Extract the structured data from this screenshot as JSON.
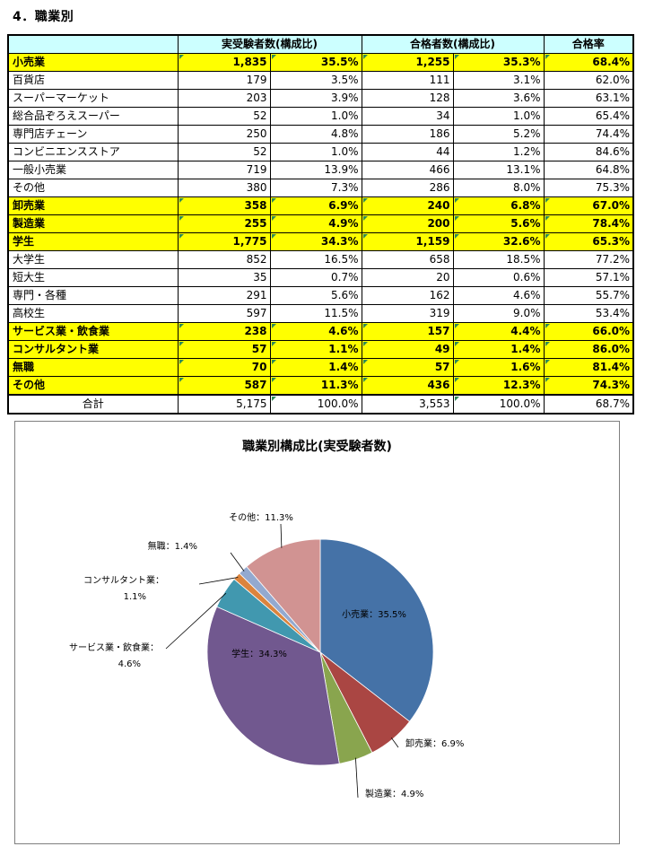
{
  "section_title": "4．職業別",
  "table": {
    "headers": [
      "",
      "実受験者数(構成比)",
      "合格者数(構成比)",
      "合格率"
    ],
    "rows": [
      {
        "type": "cat",
        "label": "小売業",
        "examinees": "1,835",
        "examinees_ratio": "35.5%",
        "passed": "1,255",
        "passed_ratio": "35.3%",
        "pass_rate": "68.4%"
      },
      {
        "type": "sub",
        "label": "百貨店",
        "examinees": "179",
        "examinees_ratio": "3.5%",
        "passed": "111",
        "passed_ratio": "3.1%",
        "pass_rate": "62.0%"
      },
      {
        "type": "sub",
        "label": "スーパーマーケット",
        "examinees": "203",
        "examinees_ratio": "3.9%",
        "passed": "128",
        "passed_ratio": "3.6%",
        "pass_rate": "63.1%"
      },
      {
        "type": "sub",
        "label": "総合品ぞろえスーパー",
        "examinees": "52",
        "examinees_ratio": "1.0%",
        "passed": "34",
        "passed_ratio": "1.0%",
        "pass_rate": "65.4%"
      },
      {
        "type": "sub",
        "label": "専門店チェーン",
        "examinees": "250",
        "examinees_ratio": "4.8%",
        "passed": "186",
        "passed_ratio": "5.2%",
        "pass_rate": "74.4%"
      },
      {
        "type": "sub",
        "label": "コンビニエンスストア",
        "examinees": "52",
        "examinees_ratio": "1.0%",
        "passed": "44",
        "passed_ratio": "1.2%",
        "pass_rate": "84.6%"
      },
      {
        "type": "sub",
        "label": "一般小売業",
        "examinees": "719",
        "examinees_ratio": "13.9%",
        "passed": "466",
        "passed_ratio": "13.1%",
        "pass_rate": "64.8%"
      },
      {
        "type": "sub",
        "label": "その他",
        "examinees": "380",
        "examinees_ratio": "7.3%",
        "passed": "286",
        "passed_ratio": "8.0%",
        "pass_rate": "75.3%"
      },
      {
        "type": "cat",
        "label": "卸売業",
        "examinees": "358",
        "examinees_ratio": "6.9%",
        "passed": "240",
        "passed_ratio": "6.8%",
        "pass_rate": "67.0%"
      },
      {
        "type": "cat",
        "label": "製造業",
        "examinees": "255",
        "examinees_ratio": "4.9%",
        "passed": "200",
        "passed_ratio": "5.6%",
        "pass_rate": "78.4%"
      },
      {
        "type": "cat",
        "label": "学生",
        "examinees": "1,775",
        "examinees_ratio": "34.3%",
        "passed": "1,159",
        "passed_ratio": "32.6%",
        "pass_rate": "65.3%"
      },
      {
        "type": "sub",
        "label": "大学生",
        "examinees": "852",
        "examinees_ratio": "16.5%",
        "passed": "658",
        "passed_ratio": "18.5%",
        "pass_rate": "77.2%"
      },
      {
        "type": "sub",
        "label": "短大生",
        "examinees": "35",
        "examinees_ratio": "0.7%",
        "passed": "20",
        "passed_ratio": "0.6%",
        "pass_rate": "57.1%"
      },
      {
        "type": "sub",
        "label": "専門・各種",
        "examinees": "291",
        "examinees_ratio": "5.6%",
        "passed": "162",
        "passed_ratio": "4.6%",
        "pass_rate": "55.7%"
      },
      {
        "type": "sub",
        "label": "高校生",
        "examinees": "597",
        "examinees_ratio": "11.5%",
        "passed": "319",
        "passed_ratio": "9.0%",
        "pass_rate": "53.4%"
      },
      {
        "type": "cat",
        "label": "サービス業・飲食業",
        "examinees": "238",
        "examinees_ratio": "4.6%",
        "passed": "157",
        "passed_ratio": "4.4%",
        "pass_rate": "66.0%"
      },
      {
        "type": "cat",
        "label": "コンサルタント業",
        "examinees": "57",
        "examinees_ratio": "1.1%",
        "passed": "49",
        "passed_ratio": "1.4%",
        "pass_rate": "86.0%"
      },
      {
        "type": "cat",
        "label": "無職",
        "examinees": "70",
        "examinees_ratio": "1.4%",
        "passed": "57",
        "passed_ratio": "1.6%",
        "pass_rate": "81.4%"
      },
      {
        "type": "cat",
        "label": "その他",
        "examinees": "587",
        "examinees_ratio": "11.3%",
        "passed": "436",
        "passed_ratio": "12.3%",
        "pass_rate": "74.3%"
      },
      {
        "type": "total",
        "label": "合計",
        "examinees": "5,175",
        "examinees_ratio": "100.0%",
        "passed": "3,553",
        "passed_ratio": "100.0%",
        "pass_rate": "68.7%"
      }
    ]
  },
  "chart_data": {
    "type": "pie",
    "title": "職業別構成比(実受験者数)",
    "slices": [
      {
        "label": "小売業",
        "value": 35.5,
        "display": "小売業; 35.5%",
        "color": "#4572a7"
      },
      {
        "label": "卸売業",
        "value": 6.9,
        "display": "卸売業; 6.9%",
        "color": "#aa4643"
      },
      {
        "label": "製造業",
        "value": 4.9,
        "display": "製造業; 4.9%",
        "color": "#89a54e"
      },
      {
        "label": "学生",
        "value": 34.3,
        "display": "学生; 34.3%",
        "color": "#71588f"
      },
      {
        "label": "サービス業・飲食業",
        "value": 4.6,
        "display": "サービス業・飲食業; 4.6%",
        "color": "#4198af"
      },
      {
        "label": "コンサルタント業",
        "value": 1.1,
        "display": "コンサルタント業; 1.1%",
        "color": "#db843d"
      },
      {
        "label": "無職",
        "value": 1.4,
        "display": "無職; 1.4%",
        "color": "#93a9cf"
      },
      {
        "label": "その他",
        "value": 11.3,
        "display": "その他; 11.3%",
        "color": "#d19392"
      }
    ]
  }
}
